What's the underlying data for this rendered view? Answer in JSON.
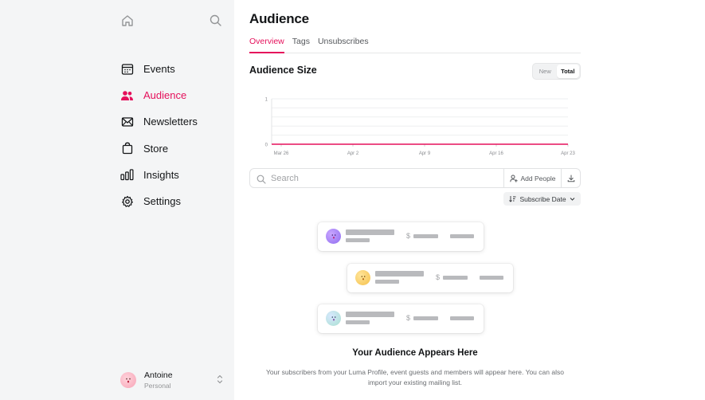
{
  "sidebar": {
    "top_icons": [
      "home-icon",
      "search-icon"
    ],
    "items": [
      {
        "label": "Events",
        "icon": "calendar-icon",
        "active": false
      },
      {
        "label": "Audience",
        "icon": "users-icon",
        "active": true
      },
      {
        "label": "Newsletters",
        "icon": "mail-icon",
        "active": false
      },
      {
        "label": "Store",
        "icon": "bag-icon",
        "active": false
      },
      {
        "label": "Insights",
        "icon": "bar-chart-icon",
        "active": false
      },
      {
        "label": "Settings",
        "icon": "gear-icon",
        "active": false
      }
    ],
    "user": {
      "name": "Antoine",
      "subtitle": "Personal"
    }
  },
  "header": {
    "title": "Audience"
  },
  "tabs": [
    {
      "label": "Overview",
      "active": true
    },
    {
      "label": "Tags",
      "active": false
    },
    {
      "label": "Unsubscribes",
      "active": false
    }
  ],
  "audience_size": {
    "title": "Audience Size",
    "toggle": [
      {
        "label": "New",
        "active": false
      },
      {
        "label": "Total",
        "active": true
      }
    ]
  },
  "chart_data": {
    "type": "line",
    "x_ticks": [
      "Mar 26",
      "Apr 2",
      "Apr 9",
      "Apr 16",
      "Apr 23"
    ],
    "y_ticks": [
      "0",
      "1"
    ],
    "ylim": [
      0,
      1
    ],
    "series": [
      {
        "values": [
          0,
          0,
          0,
          0,
          0
        ],
        "color": "#e5105b"
      }
    ],
    "grid": true
  },
  "search": {
    "placeholder": "Search"
  },
  "actions": {
    "add_people": "Add People",
    "download_icon": "download-icon"
  },
  "sort": {
    "label": "Subscribe Date"
  },
  "empty_state": {
    "title": "Your Audience Appears Here",
    "description": "Your subscribers from your Luma Profile, event guests and members will appear here. You can also import your existing mailing list.",
    "card_symbol": "$"
  },
  "colors": {
    "accent": "#e5105b",
    "sidebar_bg": "#f4f5f6"
  }
}
